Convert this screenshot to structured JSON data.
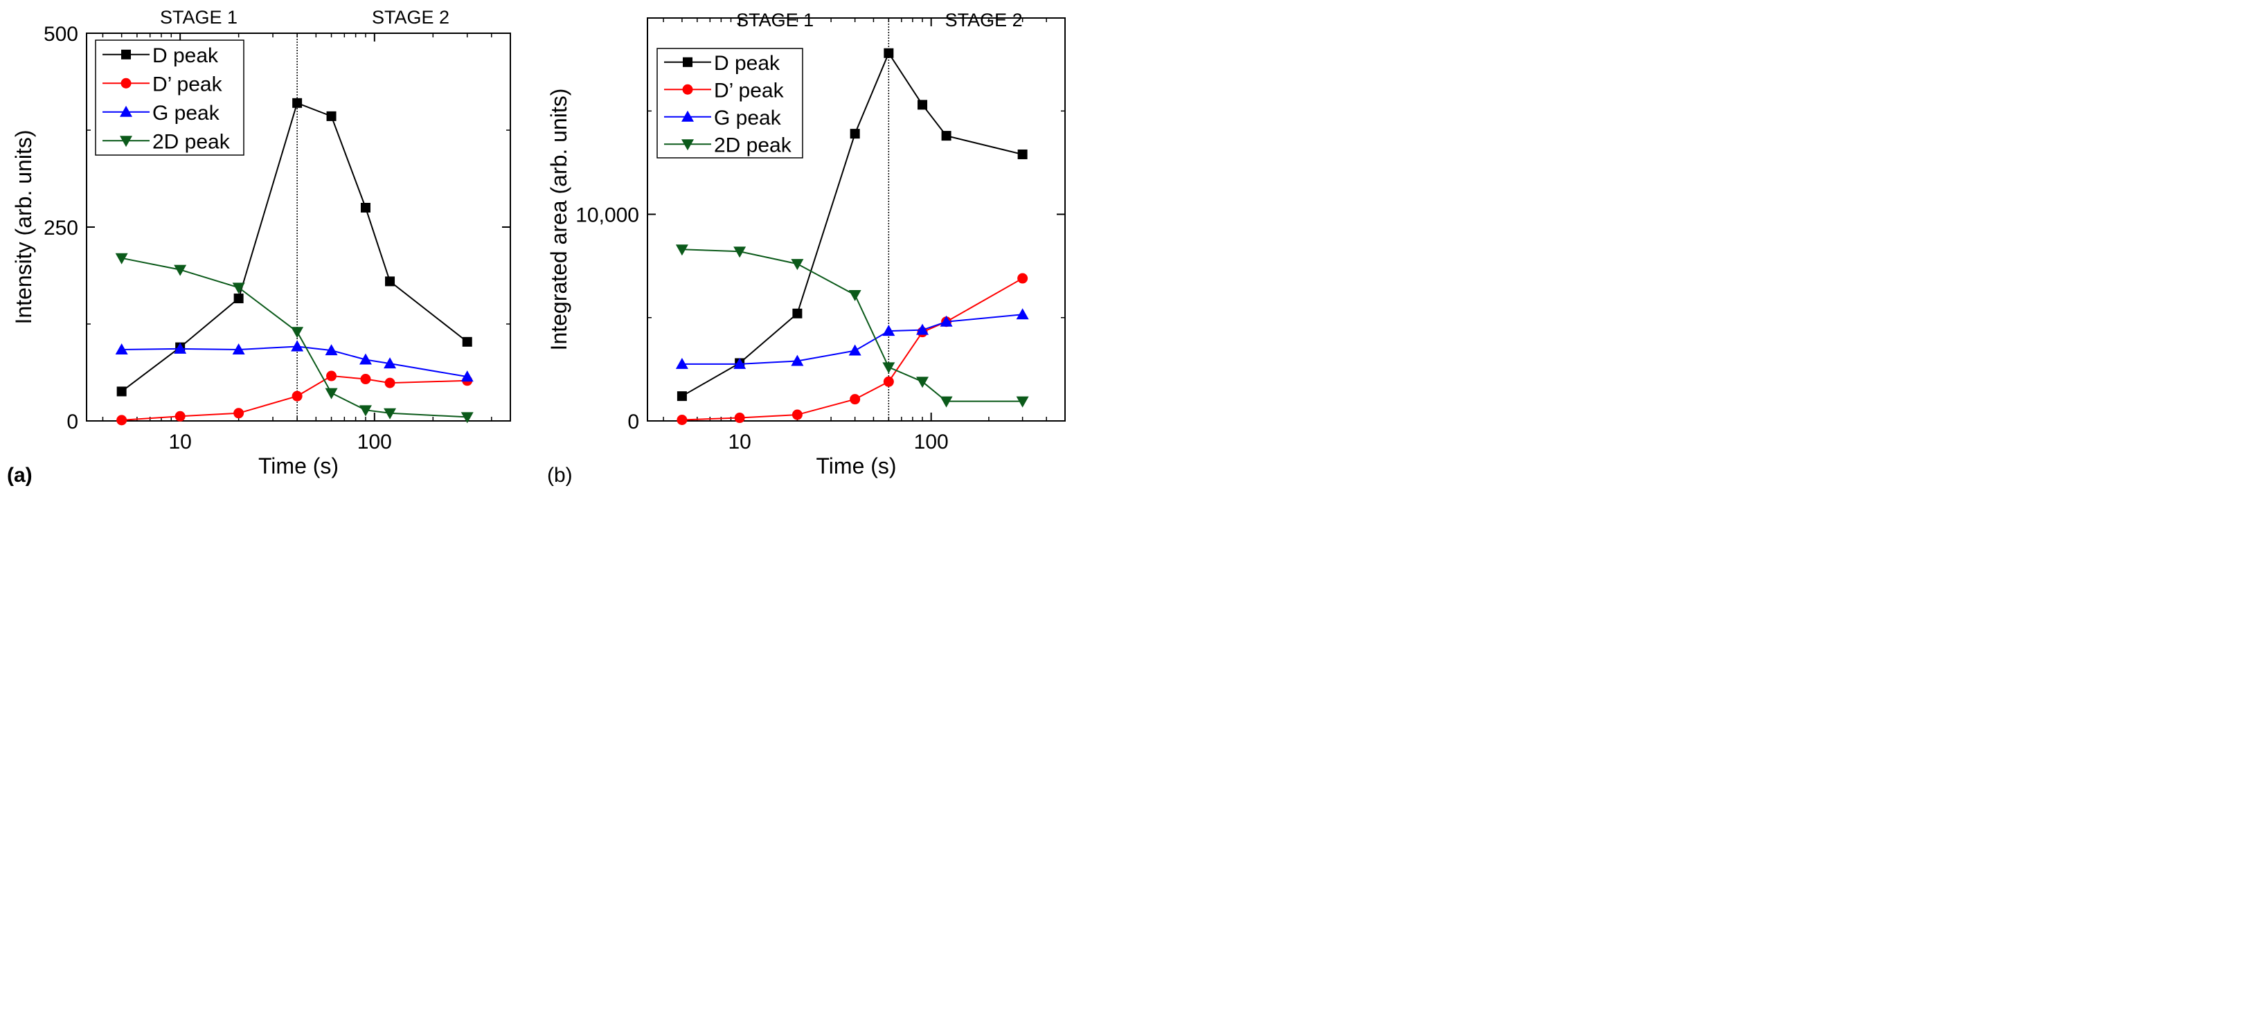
{
  "chart_data": [
    {
      "type": "line",
      "panel_label": "(a)",
      "xlabel": "Time (s)",
      "ylabel": "Intensity (arb. units)",
      "x_scale": "log",
      "xlim": [
        3.3,
        500
      ],
      "ylim": [
        0,
        500
      ],
      "x_ticks": [
        10,
        100
      ],
      "x_tick_labels": [
        "10",
        "100"
      ],
      "y_ticks": [
        0,
        250,
        500
      ],
      "y_tick_labels": [
        "0",
        "250",
        "500"
      ],
      "divider_x": 40,
      "stage_labels": [
        "STAGE 1",
        "STAGE 2"
      ],
      "legend_position": "top-left",
      "series": [
        {
          "name": "D peak",
          "color": "#000000",
          "marker": "square",
          "x": [
            5,
            10,
            20,
            40,
            60,
            90,
            120,
            300
          ],
          "y": [
            38,
            95,
            158,
            410,
            393,
            275,
            180,
            102
          ]
        },
        {
          "name": "D’ peak",
          "color": "#ff0000",
          "marker": "circle",
          "x": [
            5,
            10,
            20,
            40,
            60,
            90,
            120,
            300
          ],
          "y": [
            1,
            6,
            10,
            32,
            58,
            54,
            49,
            52
          ]
        },
        {
          "name": "G peak",
          "color": "#0000ff",
          "marker": "triangle-up",
          "x": [
            5,
            10,
            20,
            40,
            60,
            90,
            120,
            300
          ],
          "y": [
            92,
            93,
            92,
            96,
            91,
            79,
            74,
            57
          ]
        },
        {
          "name": "2D peak",
          "color": "#0b5a1a",
          "marker": "triangle-down",
          "x": [
            5,
            10,
            20,
            40,
            60,
            90,
            120,
            300
          ],
          "y": [
            210,
            195,
            172,
            115,
            36,
            14,
            10,
            5
          ]
        }
      ]
    },
    {
      "type": "line",
      "panel_label": "(b)",
      "xlabel": "Time (s)",
      "ylabel": "Integrated area (arb. units)",
      "x_scale": "log",
      "xlim": [
        3.3,
        500
      ],
      "ylim": [
        0,
        19500
      ],
      "x_ticks": [
        10,
        100
      ],
      "x_tick_labels": [
        "10",
        "100"
      ],
      "y_ticks": [
        0,
        10000
      ],
      "y_tick_labels": [
        "0",
        "10,000"
      ],
      "divider_x": 60,
      "stage_labels": [
        "STAGE 1",
        "STAGE 2"
      ],
      "legend_position": "top-left",
      "series": [
        {
          "name": "D peak",
          "color": "#000000",
          "marker": "square",
          "x": [
            5,
            10,
            20,
            40,
            60,
            90,
            120,
            300
          ],
          "y": [
            1200,
            2800,
            5200,
            13900,
            17800,
            15300,
            13800,
            12900
          ]
        },
        {
          "name": "D’ peak",
          "color": "#ff0000",
          "marker": "circle",
          "x": [
            5,
            10,
            20,
            40,
            60,
            90,
            120,
            300
          ],
          "y": [
            50,
            150,
            300,
            1050,
            1900,
            4300,
            4800,
            6900
          ]
        },
        {
          "name": "G peak",
          "color": "#0000ff",
          "marker": "triangle-up",
          "x": [
            5,
            10,
            20,
            40,
            60,
            90,
            120,
            300
          ],
          "y": [
            2750,
            2750,
            2900,
            3400,
            4350,
            4400,
            4800,
            5150
          ]
        },
        {
          "name": "2D peak",
          "color": "#0b5a1a",
          "marker": "triangle-down",
          "x": [
            5,
            10,
            20,
            40,
            60,
            90,
            120,
            300
          ],
          "y": [
            8300,
            8200,
            7600,
            6100,
            2600,
            1900,
            950,
            950
          ]
        }
      ]
    }
  ]
}
